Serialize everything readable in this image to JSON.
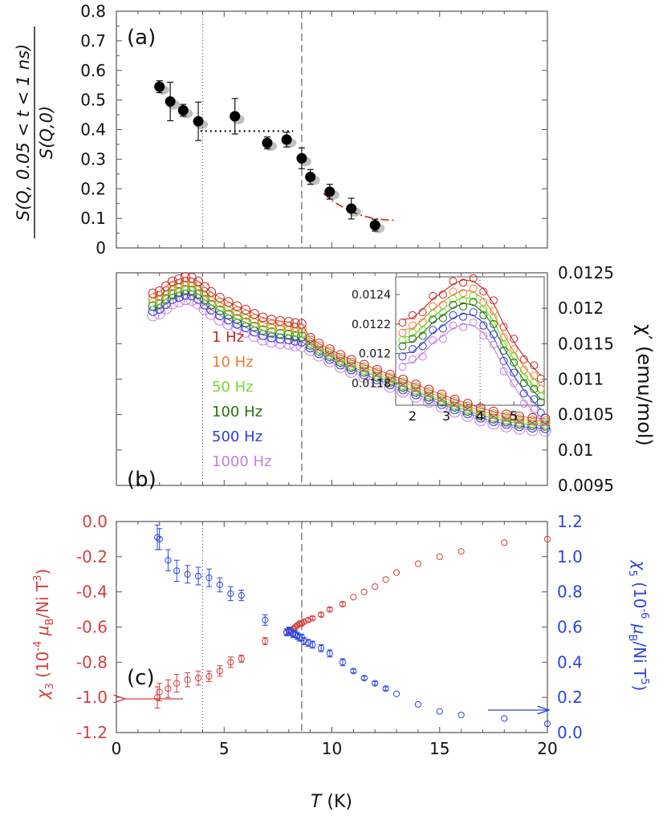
{
  "figure": {
    "x_axis_label": "T (K)",
    "x_ticks": [
      "0",
      "5",
      "10",
      "15",
      "20"
    ]
  },
  "chart_data": [
    {
      "panel": "(a)",
      "type": "scatter",
      "panel_label": "(a)",
      "ylabel_numerator": "S(Q, 0.05 < t < 1 ns)",
      "ylabel_denominator": "S(Q,0)",
      "xlim": [
        0,
        20
      ],
      "ylim": [
        0,
        0.8
      ],
      "y_ticks": [
        "0",
        "0.1",
        "0.2",
        "0.3",
        "0.4",
        "0.5",
        "0.6",
        "0.7",
        "0.8"
      ],
      "marker_color": "#000000",
      "points": [
        {
          "x": 2.0,
          "y": 0.545,
          "err": 0.02
        },
        {
          "x": 2.5,
          "y": 0.495,
          "err": 0.065
        },
        {
          "x": 3.1,
          "y": 0.465,
          "err": 0.02
        },
        {
          "x": 3.8,
          "y": 0.428,
          "err": 0.065
        },
        {
          "x": 5.5,
          "y": 0.445,
          "err": 0.06
        },
        {
          "x": 7.0,
          "y": 0.355,
          "err": 0.02
        },
        {
          "x": 7.9,
          "y": 0.366,
          "err": 0.025
        },
        {
          "x": 8.6,
          "y": 0.303,
          "err": 0.035
        },
        {
          "x": 9.0,
          "y": 0.24,
          "err": 0.025
        },
        {
          "x": 9.9,
          "y": 0.19,
          "err": 0.025
        },
        {
          "x": 10.9,
          "y": 0.133,
          "err": 0.035
        },
        {
          "x": 12.0,
          "y": 0.077,
          "err": 0.02
        }
      ],
      "plateau_line": {
        "x": [
          3.9,
          8.2
        ],
        "y": 0.395
      },
      "fit_curve": {
        "color": "#d01c1c",
        "x": [
          9.6,
          10.0,
          10.5,
          11.0,
          11.5,
          12.0,
          12.5,
          13.0
        ],
        "y": [
          0.185,
          0.16,
          0.138,
          0.12,
          0.107,
          0.099,
          0.095,
          0.093
        ]
      }
    },
    {
      "panel": "(b)",
      "type": "scatter",
      "panel_label": "(b)",
      "y_axis_side": "right",
      "ylabel": "χ′ (emu/mol)",
      "xlim": [
        0,
        20
      ],
      "ylim": [
        0.0095,
        0.0125
      ],
      "y_ticks": [
        "0.0095",
        "0.01",
        "0.0105",
        "0.011",
        "0.0115",
        "0.012",
        "0.0125"
      ],
      "series": [
        {
          "name": "1 Hz",
          "color": "#c62828",
          "offset": 0.00026
        },
        {
          "name": "10 Hz",
          "color": "#ef7b2d",
          "offset": 0.00019
        },
        {
          "name": "50 Hz",
          "color": "#6fdc2c",
          "offset": 0.00013
        },
        {
          "name": "100 Hz",
          "color": "#2a6e12",
          "offset": 8e-05
        },
        {
          "name": "500 Hz",
          "color": "#2c3fd6",
          "offset": 1e-05
        },
        {
          "name": "1000 Hz",
          "color": "#c77be4",
          "offset": -5e-05
        }
      ],
      "base_curve": {
        "x": [
          1.7,
          2.0,
          2.3,
          2.6,
          2.9,
          3.2,
          3.5,
          3.8,
          4.1,
          4.4,
          4.8,
          5.2,
          5.6,
          6.0,
          6.4,
          6.8,
          7.2,
          7.6,
          8.0,
          8.3,
          8.6,
          9.0,
          9.4,
          9.9,
          10.4,
          10.9,
          11.5,
          12.1,
          12.7,
          13.3,
          13.9,
          14.5,
          15.1,
          15.7,
          16.3,
          16.9,
          17.5,
          18.1,
          18.7,
          19.3,
          19.9
        ],
        "y": [
          0.01195,
          0.01198,
          0.01205,
          0.01212,
          0.01215,
          0.01218,
          0.01217,
          0.01212,
          0.01204,
          0.01197,
          0.01189,
          0.01183,
          0.01177,
          0.01172,
          0.01166,
          0.01161,
          0.01158,
          0.01156,
          0.01155,
          0.01153,
          0.01152,
          0.01144,
          0.01136,
          0.01128,
          0.0112,
          0.01113,
          0.01106,
          0.01099,
          0.01092,
          0.01085,
          0.01078,
          0.01071,
          0.01064,
          0.01057,
          0.01051,
          0.01045,
          0.0104,
          0.01036,
          0.01033,
          0.01031,
          0.0103
        ]
      },
      "inset": {
        "xlim": [
          1.5,
          5.9
        ],
        "ylim": [
          0.01165,
          0.01252
        ],
        "x_ticks": [
          "2",
          "3",
          "4",
          "5"
        ],
        "y_ticks": [
          "0.0118",
          "0.012",
          "0.0122",
          "0.0124"
        ],
        "x": [
          1.7,
          2.0,
          2.3,
          2.6,
          2.9,
          3.2,
          3.5,
          3.8,
          4.1,
          4.4,
          4.7,
          5.0,
          5.3,
          5.6,
          5.8
        ],
        "y": [
          0.01211,
          0.01212,
          0.01218,
          0.01225,
          0.0123,
          0.01235,
          0.01238,
          0.01237,
          0.01232,
          0.01222,
          0.01208,
          0.01196,
          0.01186,
          0.01178,
          0.01173
        ],
        "series_offsets": [
          0.00012,
          5e-05,
          0.0,
          -4e-05,
          -0.00011,
          -0.00018
        ]
      }
    },
    {
      "panel": "(c)",
      "type": "scatter",
      "panel_label": "(c)",
      "xlim": [
        0,
        20
      ],
      "left_axis": {
        "label_chi": "χ",
        "label_sub": "3",
        "label_open": " (10",
        "label_exp": "-4",
        "label_mu": " μ",
        "label_mu_sub": "B",
        "label_tail": "/Ni T",
        "label_tail_exp": "3",
        "label_close": ")",
        "color": "#d04040",
        "ylim": [
          -1.2,
          0.0
        ],
        "ticks": [
          "-1.2",
          "-1.0",
          "-0.8",
          "-0.6",
          "-0.4",
          "-0.2",
          "0.0"
        ]
      },
      "right_axis": {
        "label_chi": "χ",
        "label_sub": "5",
        "label_open": " (10",
        "label_exp": "-6",
        "label_mu": " μ",
        "label_mu_sub": "B",
        "label_tail": "/Ni T",
        "label_tail_exp": "5",
        "label_close": ")",
        "color": "#2d44e0",
        "ylim": [
          0.0,
          1.2
        ],
        "ticks": [
          "0.0",
          "0.2",
          "0.4",
          "0.6",
          "0.8",
          "1.0",
          "1.2"
        ]
      },
      "chi3": {
        "color": "#d04040",
        "x": [
          1.9,
          2.0,
          2.4,
          2.8,
          3.3,
          3.8,
          4.3,
          4.8,
          5.3,
          5.8,
          6.9,
          7.9,
          8.0,
          8.1,
          8.2,
          8.3,
          8.4,
          8.5,
          8.6,
          8.7,
          8.9,
          9.1,
          9.5,
          9.9,
          10.5,
          11.0,
          11.5,
          12.0,
          12.5,
          13.0,
          14.0,
          15.0,
          16.0,
          18.0,
          20.0
        ],
        "y": [
          -1.0,
          -0.97,
          -0.95,
          -0.92,
          -0.9,
          -0.89,
          -0.88,
          -0.85,
          -0.8,
          -0.78,
          -0.68,
          -0.63,
          -0.62,
          -0.62,
          -0.61,
          -0.6,
          -0.59,
          -0.58,
          -0.58,
          -0.57,
          -0.56,
          -0.55,
          -0.53,
          -0.5,
          -0.47,
          -0.43,
          -0.4,
          -0.37,
          -0.33,
          -0.29,
          -0.24,
          -0.2,
          -0.17,
          -0.12,
          -0.1
        ],
        "err": [
          0.06,
          0.05,
          0.05,
          0.05,
          0.04,
          0.04,
          0.03,
          0.03,
          0.03,
          0.02,
          0.02,
          0.01,
          0.01,
          0.01,
          0.01,
          0.01,
          0.01,
          0.01,
          0.01,
          0.01,
          0.01,
          0.01,
          0.01,
          0.01,
          0.01,
          0.0,
          0.0,
          0.0,
          0.0,
          0.0,
          0.0,
          0.0,
          0.0,
          0.0,
          0.0
        ]
      },
      "chi5": {
        "color": "#2d44e0",
        "x": [
          1.9,
          2.0,
          2.4,
          2.8,
          3.3,
          3.8,
          4.3,
          4.8,
          5.3,
          5.8,
          6.9,
          7.9,
          8.0,
          8.1,
          8.2,
          8.3,
          8.4,
          8.5,
          8.6,
          8.7,
          8.9,
          9.1,
          9.5,
          9.9,
          10.5,
          11.0,
          11.5,
          12.0,
          12.5,
          13.0,
          14.0,
          15.0,
          16.0,
          18.0,
          20.0
        ],
        "y": [
          1.11,
          1.1,
          0.98,
          0.92,
          0.9,
          0.89,
          0.88,
          0.84,
          0.79,
          0.78,
          0.64,
          0.57,
          0.58,
          0.57,
          0.56,
          0.56,
          0.55,
          0.54,
          0.54,
          0.52,
          0.51,
          0.5,
          0.48,
          0.45,
          0.4,
          0.35,
          0.31,
          0.28,
          0.25,
          0.22,
          0.16,
          0.12,
          0.1,
          0.08,
          0.05
        ],
        "err": [
          0.07,
          0.06,
          0.06,
          0.06,
          0.05,
          0.05,
          0.05,
          0.04,
          0.04,
          0.03,
          0.03,
          0.02,
          0.02,
          0.02,
          0.02,
          0.02,
          0.02,
          0.02,
          0.02,
          0.02,
          0.02,
          0.02,
          0.02,
          0.02,
          0.02,
          0.01,
          0.01,
          0.01,
          0.01,
          0.0,
          0.0,
          0.0,
          0.0,
          0.0,
          0.0
        ]
      }
    }
  ],
  "guide_lines": {
    "dotted_T": 4.0,
    "dashed_T": 8.6
  }
}
